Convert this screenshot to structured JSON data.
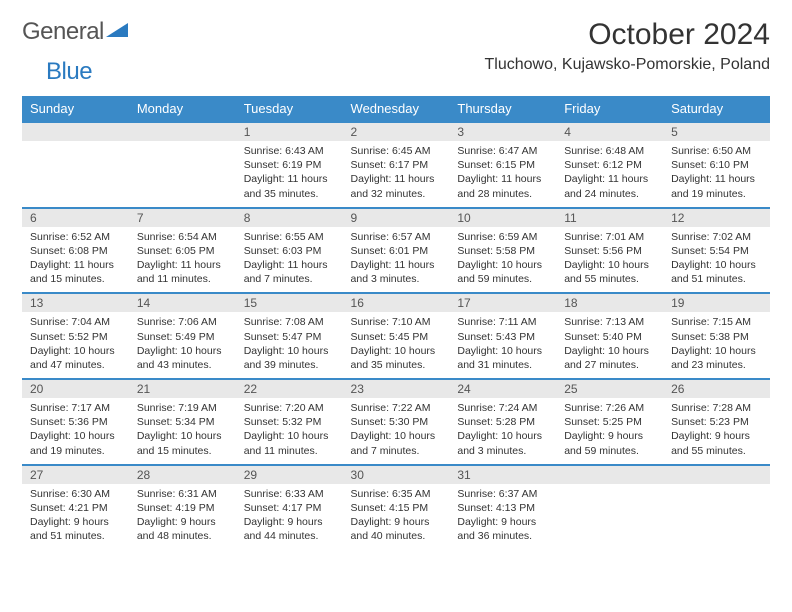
{
  "logo": {
    "text1": "General",
    "text2": "Blue"
  },
  "title": "October 2024",
  "location": "Tluchowo, Kujawsko-Pomorskie, Poland",
  "colors": {
    "header_bg": "#3a8ac8",
    "header_text": "#ffffff",
    "daynum_bg": "#e8e8e8",
    "separator": "#3a8ac8",
    "logo_gray": "#555555",
    "logo_blue": "#2a7ac0",
    "body_text": "#333333"
  },
  "dayNames": [
    "Sunday",
    "Monday",
    "Tuesday",
    "Wednesday",
    "Thursday",
    "Friday",
    "Saturday"
  ],
  "weeks": [
    [
      null,
      null,
      {
        "n": "1",
        "sr": "6:43 AM",
        "ss": "6:19 PM",
        "dl": "11 hours and 35 minutes."
      },
      {
        "n": "2",
        "sr": "6:45 AM",
        "ss": "6:17 PM",
        "dl": "11 hours and 32 minutes."
      },
      {
        "n": "3",
        "sr": "6:47 AM",
        "ss": "6:15 PM",
        "dl": "11 hours and 28 minutes."
      },
      {
        "n": "4",
        "sr": "6:48 AM",
        "ss": "6:12 PM",
        "dl": "11 hours and 24 minutes."
      },
      {
        "n": "5",
        "sr": "6:50 AM",
        "ss": "6:10 PM",
        "dl": "11 hours and 19 minutes."
      }
    ],
    [
      {
        "n": "6",
        "sr": "6:52 AM",
        "ss": "6:08 PM",
        "dl": "11 hours and 15 minutes."
      },
      {
        "n": "7",
        "sr": "6:54 AM",
        "ss": "6:05 PM",
        "dl": "11 hours and 11 minutes."
      },
      {
        "n": "8",
        "sr": "6:55 AM",
        "ss": "6:03 PM",
        "dl": "11 hours and 7 minutes."
      },
      {
        "n": "9",
        "sr": "6:57 AM",
        "ss": "6:01 PM",
        "dl": "11 hours and 3 minutes."
      },
      {
        "n": "10",
        "sr": "6:59 AM",
        "ss": "5:58 PM",
        "dl": "10 hours and 59 minutes."
      },
      {
        "n": "11",
        "sr": "7:01 AM",
        "ss": "5:56 PM",
        "dl": "10 hours and 55 minutes."
      },
      {
        "n": "12",
        "sr": "7:02 AM",
        "ss": "5:54 PM",
        "dl": "10 hours and 51 minutes."
      }
    ],
    [
      {
        "n": "13",
        "sr": "7:04 AM",
        "ss": "5:52 PM",
        "dl": "10 hours and 47 minutes."
      },
      {
        "n": "14",
        "sr": "7:06 AM",
        "ss": "5:49 PM",
        "dl": "10 hours and 43 minutes."
      },
      {
        "n": "15",
        "sr": "7:08 AM",
        "ss": "5:47 PM",
        "dl": "10 hours and 39 minutes."
      },
      {
        "n": "16",
        "sr": "7:10 AM",
        "ss": "5:45 PM",
        "dl": "10 hours and 35 minutes."
      },
      {
        "n": "17",
        "sr": "7:11 AM",
        "ss": "5:43 PM",
        "dl": "10 hours and 31 minutes."
      },
      {
        "n": "18",
        "sr": "7:13 AM",
        "ss": "5:40 PM",
        "dl": "10 hours and 27 minutes."
      },
      {
        "n": "19",
        "sr": "7:15 AM",
        "ss": "5:38 PM",
        "dl": "10 hours and 23 minutes."
      }
    ],
    [
      {
        "n": "20",
        "sr": "7:17 AM",
        "ss": "5:36 PM",
        "dl": "10 hours and 19 minutes."
      },
      {
        "n": "21",
        "sr": "7:19 AM",
        "ss": "5:34 PM",
        "dl": "10 hours and 15 minutes."
      },
      {
        "n": "22",
        "sr": "7:20 AM",
        "ss": "5:32 PM",
        "dl": "10 hours and 11 minutes."
      },
      {
        "n": "23",
        "sr": "7:22 AM",
        "ss": "5:30 PM",
        "dl": "10 hours and 7 minutes."
      },
      {
        "n": "24",
        "sr": "7:24 AM",
        "ss": "5:28 PM",
        "dl": "10 hours and 3 minutes."
      },
      {
        "n": "25",
        "sr": "7:26 AM",
        "ss": "5:25 PM",
        "dl": "9 hours and 59 minutes."
      },
      {
        "n": "26",
        "sr": "7:28 AM",
        "ss": "5:23 PM",
        "dl": "9 hours and 55 minutes."
      }
    ],
    [
      {
        "n": "27",
        "sr": "6:30 AM",
        "ss": "4:21 PM",
        "dl": "9 hours and 51 minutes."
      },
      {
        "n": "28",
        "sr": "6:31 AM",
        "ss": "4:19 PM",
        "dl": "9 hours and 48 minutes."
      },
      {
        "n": "29",
        "sr": "6:33 AM",
        "ss": "4:17 PM",
        "dl": "9 hours and 44 minutes."
      },
      {
        "n": "30",
        "sr": "6:35 AM",
        "ss": "4:15 PM",
        "dl": "9 hours and 40 minutes."
      },
      {
        "n": "31",
        "sr": "6:37 AM",
        "ss": "4:13 PM",
        "dl": "9 hours and 36 minutes."
      },
      null,
      null
    ]
  ],
  "labels": {
    "sunrise": "Sunrise:",
    "sunset": "Sunset:",
    "daylight": "Daylight:"
  }
}
